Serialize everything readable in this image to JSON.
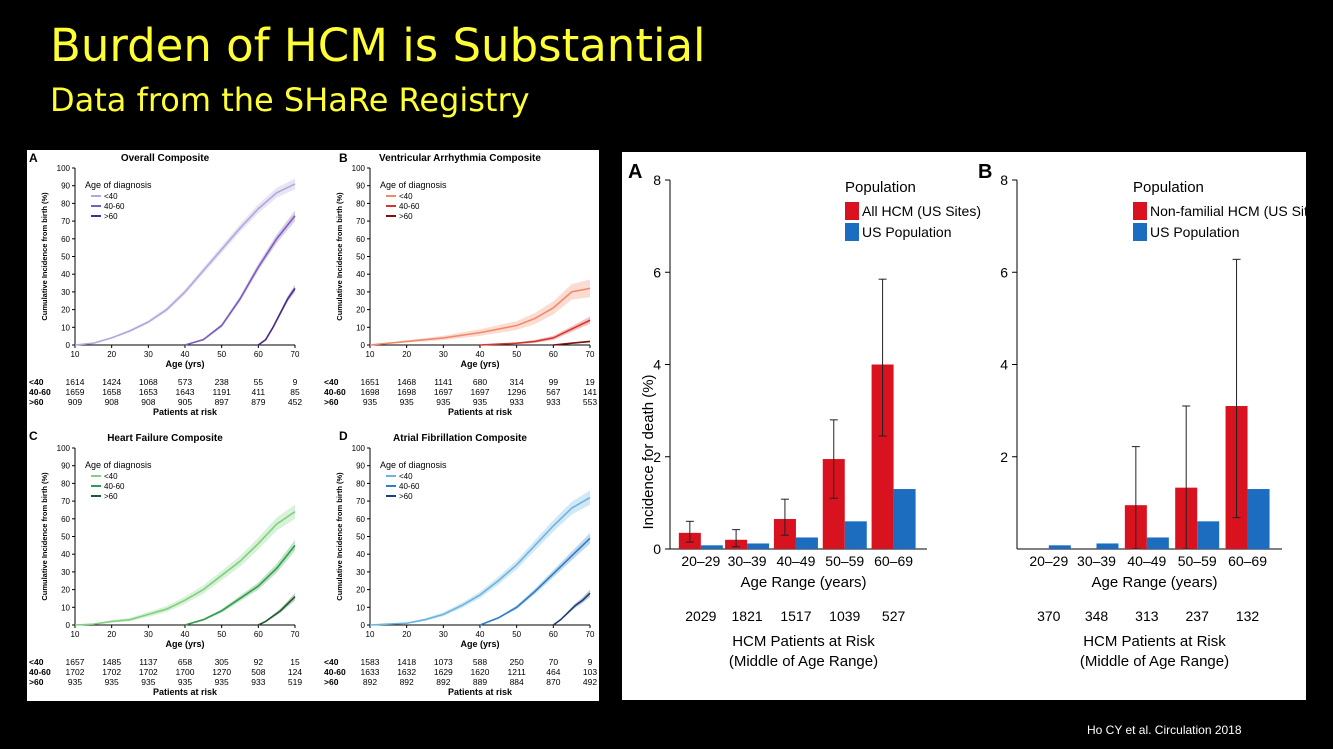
{
  "slide": {
    "title": "Burden of HCM is Substantial",
    "subtitle": "Data from the SHaRe Registry",
    "citation": "Ho CY et al. Circulation 2018"
  },
  "colors": {
    "title": "#ffff33",
    "purple": [
      "#b4a6db",
      "#7a5cbf",
      "#4b2a8c"
    ],
    "red": [
      "#f08a6a",
      "#d8342e",
      "#7a1010"
    ],
    "green": [
      "#7fd07f",
      "#2e9e4a",
      "#1f5a30"
    ],
    "blue": [
      "#6cb4e0",
      "#2f7ec8",
      "#1f3f78"
    ],
    "hcm": "#d8121f",
    "us": "#1c6cc0"
  },
  "chart_data": [
    {
      "id": "A",
      "type": "line",
      "title": "Overall Composite",
      "palette": "purple",
      "xlabel": "Age (yrs)",
      "ylabel": "Cumulative Incidence from birth (%)",
      "xlim": [
        10,
        70
      ],
      "ylim": [
        0,
        100
      ],
      "xticks": [
        10,
        20,
        30,
        40,
        50,
        60,
        70
      ],
      "yticks": [
        0,
        10,
        20,
        30,
        40,
        50,
        60,
        70,
        80,
        90,
        100
      ],
      "legend_title": "Age of diagnosis",
      "series": [
        {
          "name": "<40",
          "x": [
            10,
            15,
            20,
            25,
            30,
            35,
            40,
            45,
            50,
            55,
            60,
            65,
            70
          ],
          "y": [
            0,
            1,
            4,
            8,
            13,
            20,
            30,
            42,
            54,
            66,
            77,
            86,
            91
          ],
          "band": 3
        },
        {
          "name": "40-60",
          "x": [
            40,
            45,
            50,
            55,
            60,
            65,
            70
          ],
          "y": [
            0,
            3,
            11,
            26,
            44,
            60,
            73
          ],
          "band": 3
        },
        {
          "name": ">60",
          "x": [
            60,
            62,
            64,
            66,
            68,
            70
          ],
          "y": [
            0,
            3,
            10,
            18,
            26,
            32
          ],
          "band": 2
        }
      ],
      "risk": {
        "title": "Patients at risk",
        "rows": [
          {
            "label": "<40",
            "values": [
              "1614",
              "1424",
              "1068",
              "573",
              "238",
              "55",
              "9"
            ]
          },
          {
            "label": "40-60",
            "values": [
              "1659",
              "1658",
              "1653",
              "1643",
              "1191",
              "411",
              "85"
            ]
          },
          {
            "label": ">60",
            "values": [
              "909",
              "908",
              "908",
              "905",
              "897",
              "879",
              "452"
            ]
          }
        ]
      }
    },
    {
      "id": "B",
      "type": "line",
      "title": "Ventricular Arrhythmia Composite",
      "palette": "red",
      "xlabel": "Age (yrs)",
      "ylabel": "Cumulative Incidence from birth (%)",
      "xlim": [
        10,
        70
      ],
      "ylim": [
        0,
        100
      ],
      "xticks": [
        10,
        20,
        30,
        40,
        50,
        60,
        70
      ],
      "yticks": [
        0,
        10,
        20,
        30,
        40,
        50,
        60,
        70,
        80,
        90,
        100
      ],
      "legend_title": "Age of diagnosis",
      "series": [
        {
          "name": "<40",
          "x": [
            10,
            20,
            30,
            40,
            50,
            55,
            60,
            65,
            70
          ],
          "y": [
            0,
            2,
            4,
            7,
            11,
            15,
            21,
            30,
            32
          ],
          "band": 5
        },
        {
          "name": "40-60",
          "x": [
            40,
            50,
            55,
            60,
            65,
            70
          ],
          "y": [
            0,
            1,
            2,
            4,
            9,
            14
          ],
          "band": 2
        },
        {
          "name": ">60",
          "x": [
            60,
            65,
            70
          ],
          "y": [
            0,
            1,
            2
          ],
          "band": 0.5
        }
      ],
      "risk": {
        "title": "Patients at risk",
        "rows": [
          {
            "label": "<40",
            "values": [
              "1651",
              "1468",
              "1141",
              "680",
              "314",
              "99",
              "19"
            ]
          },
          {
            "label": "40-60",
            "values": [
              "1698",
              "1698",
              "1697",
              "1697",
              "1296",
              "567",
              "141"
            ]
          },
          {
            "label": ">60",
            "values": [
              "935",
              "935",
              "935",
              "935",
              "933",
              "933",
              "553"
            ]
          }
        ]
      }
    },
    {
      "id": "C",
      "type": "line",
      "title": "Heart Failure Composite",
      "palette": "green",
      "xlabel": "Age (yrs)",
      "ylabel": "Cumulative Incidence from birth (%)",
      "xlim": [
        10,
        70
      ],
      "ylim": [
        0,
        100
      ],
      "xticks": [
        10,
        20,
        30,
        40,
        50,
        60,
        70
      ],
      "yticks": [
        0,
        10,
        20,
        30,
        40,
        50,
        60,
        70,
        80,
        90,
        100
      ],
      "legend_title": "Age of diagnosis",
      "series": [
        {
          "name": "<40",
          "x": [
            10,
            15,
            20,
            25,
            30,
            35,
            40,
            45,
            50,
            55,
            60,
            65,
            70
          ],
          "y": [
            0,
            0.5,
            2,
            3,
            6,
            9,
            14,
            20,
            28,
            36,
            46,
            57,
            64
          ],
          "band": 4
        },
        {
          "name": "40-60",
          "x": [
            40,
            45,
            50,
            55,
            60,
            65,
            70
          ],
          "y": [
            0,
            3,
            8,
            15,
            22,
            32,
            45
          ],
          "band": 3
        },
        {
          "name": ">60",
          "x": [
            60,
            62,
            64,
            66,
            68,
            70
          ],
          "y": [
            0,
            2,
            5,
            8,
            12,
            16
          ],
          "band": 2
        }
      ],
      "risk": {
        "title": "Patients at risk",
        "rows": [
          {
            "label": "<40",
            "values": [
              "1657",
              "1485",
              "1137",
              "658",
              "305",
              "92",
              "15"
            ]
          },
          {
            "label": "40-60",
            "values": [
              "1702",
              "1702",
              "1702",
              "1700",
              "1270",
              "508",
              "124"
            ]
          },
          {
            "label": ">60",
            "values": [
              "935",
              "935",
              "935",
              "935",
              "935",
              "933",
              "519"
            ]
          }
        ]
      }
    },
    {
      "id": "D",
      "type": "line",
      "title": "Atrial Fibrillation Composite",
      "palette": "blue",
      "xlabel": "Age (yrs)",
      "ylabel": "Cumulative Incidence from birth (%)",
      "xlim": [
        10,
        70
      ],
      "ylim": [
        0,
        100
      ],
      "xticks": [
        10,
        20,
        30,
        40,
        50,
        60,
        70
      ],
      "yticks": [
        0,
        10,
        20,
        30,
        40,
        50,
        60,
        70,
        80,
        90,
        100
      ],
      "legend_title": "Age of diagnosis",
      "series": [
        {
          "name": "<40",
          "x": [
            10,
            20,
            25,
            30,
            35,
            40,
            45,
            50,
            55,
            60,
            65,
            70
          ],
          "y": [
            0,
            1,
            3,
            6,
            11,
            17,
            25,
            34,
            45,
            56,
            66,
            72
          ],
          "band": 4
        },
        {
          "name": "40-60",
          "x": [
            40,
            45,
            50,
            55,
            60,
            65,
            70
          ],
          "y": [
            0,
            4,
            10,
            19,
            29,
            39,
            49
          ],
          "band": 3
        },
        {
          "name": ">60",
          "x": [
            60,
            62,
            64,
            66,
            68,
            70
          ],
          "y": [
            0,
            3,
            7,
            11,
            14,
            18
          ],
          "band": 2
        }
      ],
      "risk": {
        "title": "Patients at risk",
        "rows": [
          {
            "label": "<40",
            "values": [
              "1583",
              "1418",
              "1073",
              "588",
              "250",
              "70",
              "9"
            ]
          },
          {
            "label": "40-60",
            "values": [
              "1633",
              "1632",
              "1629",
              "1620",
              "1211",
              "464",
              "103"
            ]
          },
          {
            "label": ">60",
            "values": [
              "892",
              "892",
              "892",
              "889",
              "884",
              "870",
              "492"
            ]
          }
        ]
      }
    },
    {
      "id": "A",
      "type": "bar",
      "ylabel": "Incidence for death (%)",
      "xlabel": "Age Range (years)",
      "ylim": [
        0,
        8
      ],
      "yticks": [
        0,
        2,
        4,
        6,
        8
      ],
      "categories": [
        "20–29",
        "30–39",
        "40–49",
        "50–59",
        "60–69"
      ],
      "legend_title": "Population",
      "series": [
        {
          "name": "All HCM (US Sites)",
          "values": [
            0.35,
            0.2,
            0.65,
            1.95,
            4.0
          ],
          "err_low": [
            0.15,
            0.05,
            0.3,
            1.1,
            2.45
          ],
          "err_high": [
            0.6,
            0.42,
            1.08,
            2.8,
            5.85
          ]
        },
        {
          "name": "US Population",
          "values": [
            0.08,
            0.12,
            0.25,
            0.6,
            1.3
          ]
        }
      ],
      "risk_values": [
        "2029",
        "1821",
        "1517",
        "1039",
        "527"
      ],
      "risk_title_1": "HCM Patients at Risk",
      "risk_title_2": "(Middle of Age Range)"
    },
    {
      "id": "B",
      "type": "bar",
      "ylabel": "",
      "xlabel": "Age Range (years)",
      "ylim": [
        0,
        8
      ],
      "yticks": [
        2,
        4,
        6,
        8
      ],
      "categories": [
        "20–29",
        "30–39",
        "40–49",
        "50–59",
        "60–69"
      ],
      "legend_title": "Population",
      "series": [
        {
          "name": "Non-familial HCM (US Sites)",
          "values": [
            0,
            0,
            0.95,
            1.33,
            3.1
          ],
          "err_low": [
            null,
            null,
            0,
            0,
            0.68
          ],
          "err_high": [
            null,
            null,
            2.22,
            3.1,
            6.28
          ]
        },
        {
          "name": "US Population",
          "values": [
            0.08,
            0.12,
            0.25,
            0.6,
            1.3
          ]
        }
      ],
      "risk_values": [
        "370",
        "348",
        "313",
        "237",
        "132"
      ],
      "risk_title_1": "HCM Patients at Risk",
      "risk_title_2": "(Middle of Age Range)"
    }
  ]
}
